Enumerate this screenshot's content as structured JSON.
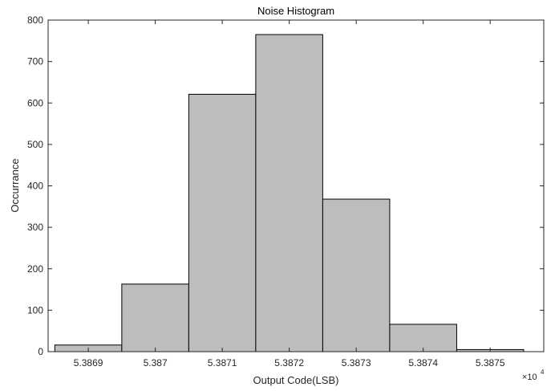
{
  "chart_data": {
    "type": "bar",
    "title": "Noise Histogram",
    "xlabel": "Output Code(LSB)",
    "ylabel": "Occurrance",
    "x_exponent_base": "×10",
    "x_exponent_power": "4",
    "x_tick_labels": [
      "5.3869",
      "5.387",
      "5.3871",
      "5.3872",
      "5.3873",
      "5.3874",
      "5.3875"
    ],
    "x_values_scaled": [
      5.3869,
      5.387,
      5.3871,
      5.3872,
      5.3873,
      5.3874,
      5.3875
    ],
    "values": [
      16,
      163,
      621,
      765,
      368,
      66,
      5
    ],
    "xlim": [
      5.38684,
      5.38758
    ],
    "ylim": [
      0,
      800
    ],
    "y_ticks": [
      0,
      100,
      200,
      300,
      400,
      500,
      600,
      700,
      800
    ],
    "bar_color": "#bdbdbd",
    "edge_color": "#000000",
    "grid": false
  }
}
